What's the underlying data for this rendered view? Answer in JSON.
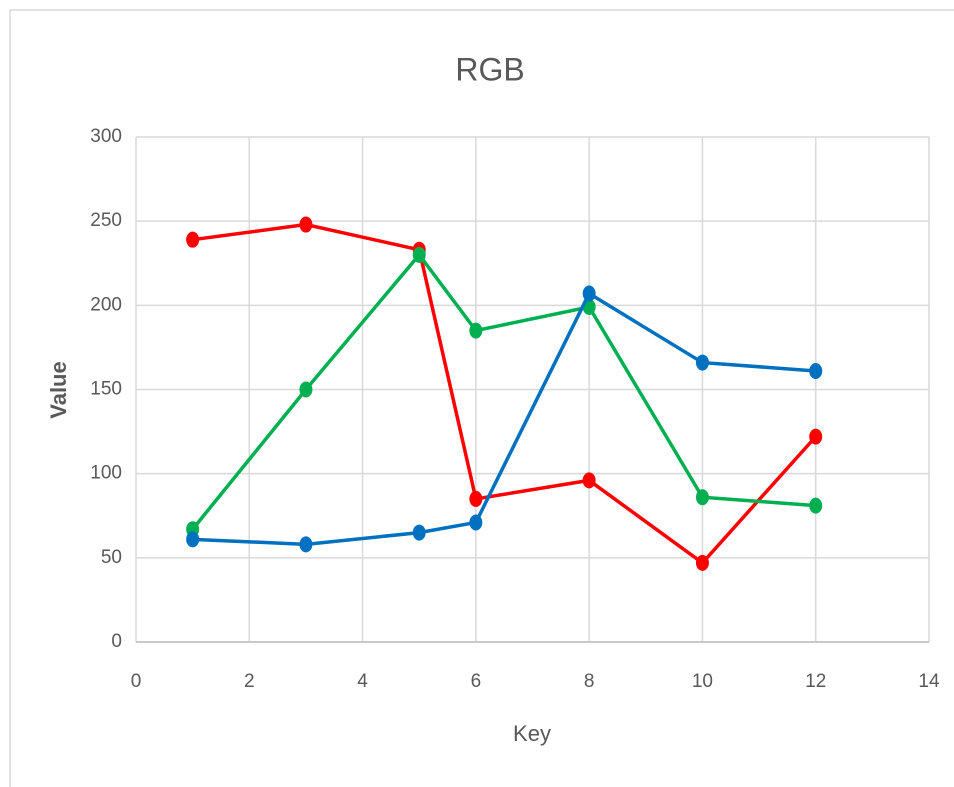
{
  "chart_data": {
    "type": "line",
    "title": "RGB",
    "x_label": "Key",
    "y_label": "Value",
    "x": [
      1,
      3,
      5,
      6,
      8,
      10,
      12
    ],
    "series": [
      {
        "color": "#ff0000",
        "values": [
          239,
          248,
          233,
          85,
          96,
          47,
          122
        ]
      },
      {
        "color": "#00b050",
        "values": [
          67,
          150,
          230,
          185,
          199,
          86,
          81
        ]
      },
      {
        "color": "#0070c0",
        "values": [
          61,
          58,
          65,
          71,
          207,
          166,
          161
        ]
      }
    ],
    "xlim": [
      0,
      14
    ],
    "xticks": [
      0,
      2,
      4,
      6,
      8,
      10,
      12,
      14
    ],
    "ylim": [
      0,
      300
    ],
    "yticks": [
      0,
      50,
      100,
      150,
      200,
      250,
      300
    ],
    "grid": true
  }
}
